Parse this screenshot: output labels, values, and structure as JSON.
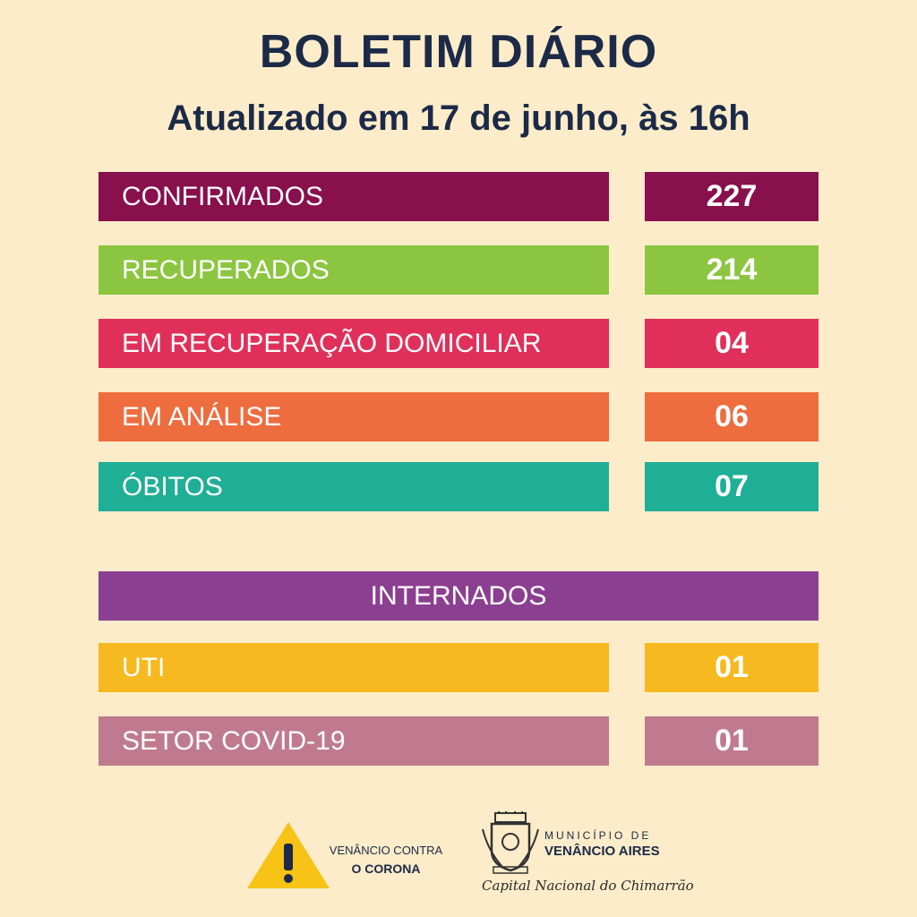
{
  "header": {
    "title": "BOLETIM DIÁRIO",
    "subtitle": "Atualizado em 17 de junho, às 16h"
  },
  "stats": [
    {
      "label": "CONFIRMADOS",
      "value": "227",
      "color": "#87104d"
    },
    {
      "label": "RECUPERADOS",
      "value": "214",
      "color": "#8cc540"
    },
    {
      "label": "EM RECUPERAÇÃO DOMICILIAR",
      "value": "04",
      "color": "#e0305a"
    },
    {
      "label": "EM ANÁLISE",
      "value": "06",
      "color": "#ed6d3f"
    },
    {
      "label": "ÓBITOS",
      "value": "07",
      "color": "#1fae96"
    }
  ],
  "hospitalized": {
    "title": "INTERNADOS",
    "title_color": "#8b3f91",
    "items": [
      {
        "label": "UTI",
        "value": "01",
        "color": "#f6b91f"
      },
      {
        "label": "SETOR COVID-19",
        "value": "01",
        "color": "#bf7a8f"
      }
    ]
  },
  "footer": {
    "warning_icon": "warning-icon",
    "campaign_line1": "VENÂNCIO CONTRA",
    "campaign_line2": "O CORONA",
    "crest_icon": "municipal-crest-icon",
    "municipality_label": "MUNICÍPIO DE",
    "municipality_name": "VENÂNCIO AIRES",
    "tagline": "Capital Nacional do Chimarrão"
  }
}
